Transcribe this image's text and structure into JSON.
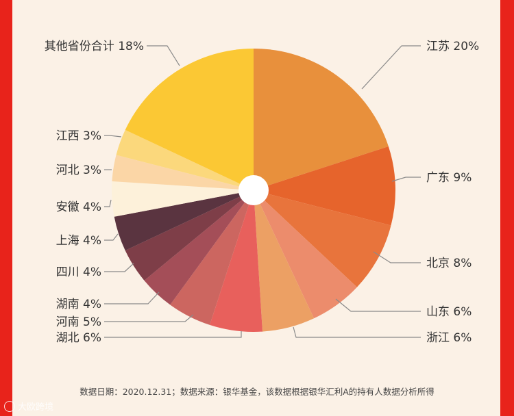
{
  "chart_data": {
    "type": "pie",
    "slices": [
      {
        "label": "江苏",
        "value": 20,
        "display": "江苏 20%",
        "color": "#e8903c"
      },
      {
        "label": "广东",
        "value": 9,
        "display": "广东 9%",
        "color": "#e6642c"
      },
      {
        "label": "北京",
        "value": 8,
        "display": "北京 8%",
        "color": "#e8743c"
      },
      {
        "label": "山东",
        "value": 6,
        "display": "山东 6%",
        "color": "#ec8c6c"
      },
      {
        "label": "浙江",
        "value": 6,
        "display": "浙江 6%",
        "color": "#eca064"
      },
      {
        "label": "湖北",
        "value": 6,
        "display": "湖北 6%",
        "color": "#e8605c"
      },
      {
        "label": "河南",
        "value": 5,
        "display": "河南 5%",
        "color": "#cc6660"
      },
      {
        "label": "湖南",
        "value": 4,
        "display": "湖南 4%",
        "color": "#a44e58"
      },
      {
        "label": "四川",
        "value": 4,
        "display": "四川 4%",
        "color": "#7e3e48"
      },
      {
        "label": "上海",
        "value": 4,
        "display": "上海 4%",
        "color": "#5a3440"
      },
      {
        "label": "安徽",
        "value": 4,
        "display": "安徽 4%",
        "color": "#fdf1da"
      },
      {
        "label": "河北",
        "value": 3,
        "display": "河北 3%",
        "color": "#fbd6a6"
      },
      {
        "label": "江西",
        "value": 3,
        "display": "江西 3%",
        "color": "#fbd87c"
      },
      {
        "label": "其他省份合计",
        "value": 18,
        "display": "其他省份合计 18%",
        "color": "#fbc834"
      }
    ],
    "center_hole_color": "#ffffff"
  },
  "footnote": "数据日期：2020.12.31；数据来源：银华基金，该数据根据银华汇利A的持有人数据分析所得",
  "watermark": "大欧跨境"
}
